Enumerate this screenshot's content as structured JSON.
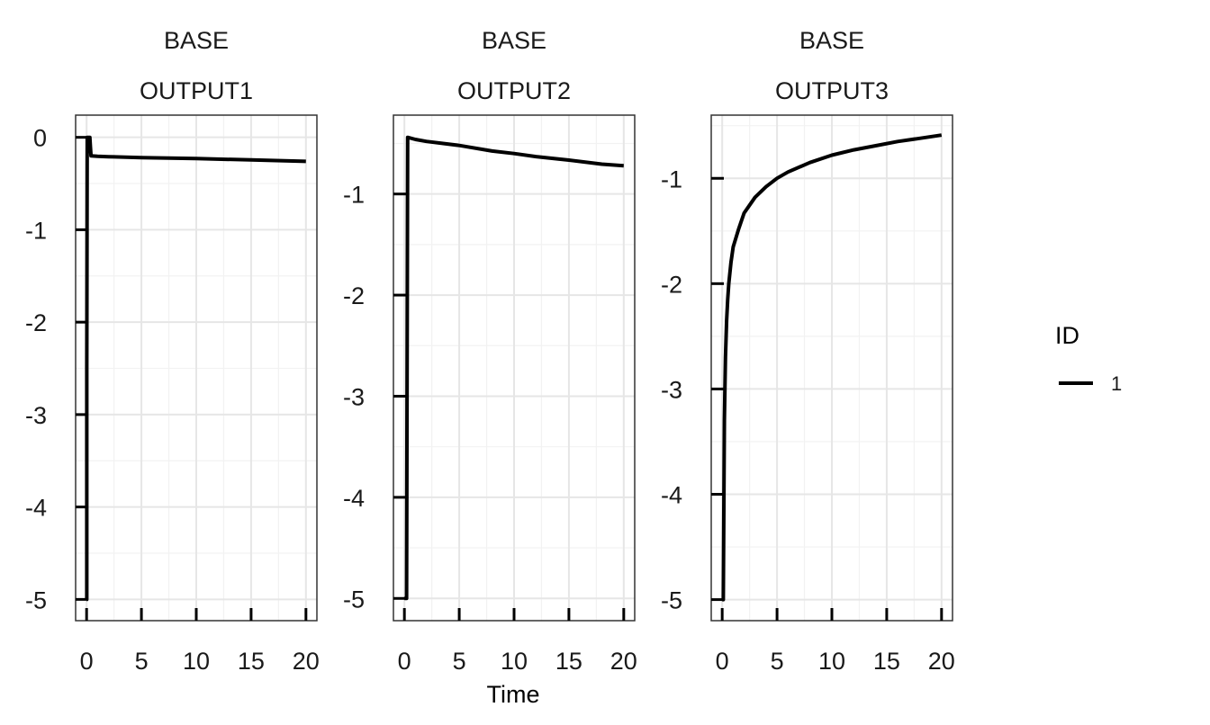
{
  "chart_data": {
    "type": "line",
    "xlabel": "Time",
    "legend": {
      "title": "ID",
      "position": "right",
      "entries": [
        {
          "label": "1",
          "color": "#000000"
        }
      ]
    },
    "grid": true,
    "line_color": "#000000",
    "panels": [
      {
        "strip_top": "BASE",
        "strip_bottom": "OUTPUT1",
        "xlim": [
          -1,
          21
        ],
        "ylim": [
          -5.23,
          0.24
        ],
        "xticks": [
          0,
          5,
          10,
          15,
          20
        ],
        "yticks": [
          0,
          -1,
          -2,
          -3,
          -4,
          -5
        ],
        "series": [
          {
            "label": "1",
            "x": [
              0,
              0.01,
              0.02,
              0.02,
              0.05,
              0.06,
              0.06,
              0.2,
              0.25,
              0.3,
              0.35,
              0.4,
              1,
              2,
              5,
              10,
              15,
              20
            ],
            "y": [
              -5,
              -5,
              -5,
              -2.5,
              -0.3,
              0,
              0,
              0,
              0,
              0,
              -0.1,
              -0.2,
              -0.205,
              -0.21,
              -0.22,
              -0.23,
              -0.245,
              -0.26
            ]
          }
        ]
      },
      {
        "strip_top": "BASE",
        "strip_bottom": "OUTPUT2",
        "xlim": [
          -1,
          21
        ],
        "ylim": [
          -5.22,
          -0.22
        ],
        "xticks": [
          0,
          5,
          10,
          15,
          20
        ],
        "yticks": [
          -1,
          -2,
          -3,
          -4,
          -5
        ],
        "series": [
          {
            "label": "1",
            "x": [
              0,
              0.2,
              0.3,
              1,
              2,
              5,
              8,
              10,
              12,
              15,
              18,
              20
            ],
            "y": [
              -5,
              -5,
              -0.44,
              -0.46,
              -0.48,
              -0.52,
              -0.575,
              -0.6,
              -0.63,
              -0.665,
              -0.705,
              -0.72
            ]
          }
        ]
      },
      {
        "strip_top": "BASE",
        "strip_bottom": "OUTPUT3",
        "xlim": [
          -1,
          21
        ],
        "ylim": [
          -5.2,
          -0.4
        ],
        "xticks": [
          0,
          5,
          10,
          15,
          20
        ],
        "yticks": [
          -1,
          -2,
          -3,
          -4,
          -5
        ],
        "series": [
          {
            "label": "1",
            "x": [
              0,
              0.1,
              0.2,
              0.3,
              0.4,
              0.5,
              0.6,
              0.8,
              1,
              1.5,
              2,
              3,
              4,
              5,
              6,
              8,
              10,
              12,
              14,
              16,
              18,
              20
            ],
            "y": [
              -5,
              -5,
              -3.3,
              -2.7,
              -2.35,
              -2.15,
              -2.0,
              -1.8,
              -1.65,
              -1.48,
              -1.33,
              -1.18,
              -1.08,
              -1.0,
              -0.94,
              -0.85,
              -0.78,
              -0.73,
              -0.69,
              -0.65,
              -0.62,
              -0.59
            ]
          }
        ]
      }
    ]
  }
}
